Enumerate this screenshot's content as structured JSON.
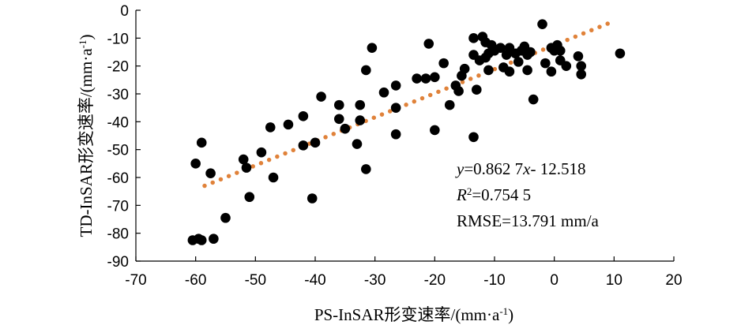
{
  "chart_data": {
    "type": "scatter",
    "xlabel": "PS-InSAR形变速率/(mm·a-1)",
    "xlabel_parts": {
      "main": "PS-InSAR形变速率/(mm·a",
      "sup": "-1",
      "tail": ")"
    },
    "ylabel": "TD-InSAR形变速率/(mm·a-1)",
    "ylabel_parts": {
      "main": "TD-InSAR形变速率/(mm·a",
      "sup": "-1",
      "tail": ")"
    },
    "xlim": [
      -70,
      20
    ],
    "ylim": [
      -90,
      0
    ],
    "xticks": [
      -70,
      -60,
      -50,
      -40,
      -30,
      -20,
      -10,
      0,
      10,
      20
    ],
    "yticks": [
      0,
      -10,
      -20,
      -30,
      -40,
      -50,
      -60,
      -70,
      -80,
      -90
    ],
    "grid": false,
    "point_color": "#000000",
    "trendline_color": "#e0823a",
    "trendline": {
      "slope": 0.8627,
      "intercept": -12.518,
      "x_range": [
        -58.5,
        9.5
      ]
    },
    "annotations": {
      "equation": {
        "y": "y",
        "mid": "=0.862 7",
        "x": "x",
        "tail": "- 12.518"
      },
      "r2": {
        "r": "R",
        "sup": "2",
        "tail": "=0.754 5"
      },
      "rmse": "RMSE=13.791 mm/a"
    },
    "points": [
      [
        -60.5,
        -82.5
      ],
      [
        -59.5,
        -82.0
      ],
      [
        -59.0,
        -82.5
      ],
      [
        -57.0,
        -82.0
      ],
      [
        -55.0,
        -74.5
      ],
      [
        -60.0,
        -55.0
      ],
      [
        -59.0,
        -47.5
      ],
      [
        -57.5,
        -58.5
      ],
      [
        -52.0,
        -53.5
      ],
      [
        -51.5,
        -56.5
      ],
      [
        -51.0,
        -67.0
      ],
      [
        -49.0,
        -51.0
      ],
      [
        -47.5,
        -42.0
      ],
      [
        -47.0,
        -60.0
      ],
      [
        -44.5,
        -41.0
      ],
      [
        -42.0,
        -38.0
      ],
      [
        -42.0,
        -48.5
      ],
      [
        -40.5,
        -67.5
      ],
      [
        -40.0,
        -47.5
      ],
      [
        -39.0,
        -31.0
      ],
      [
        -36.0,
        -34.0
      ],
      [
        -36.0,
        -39.0
      ],
      [
        -35.0,
        -42.5
      ],
      [
        -33.0,
        -48.0
      ],
      [
        -32.5,
        -34.0
      ],
      [
        -32.5,
        -39.5
      ],
      [
        -31.5,
        -21.5
      ],
      [
        -31.5,
        -57.0
      ],
      [
        -30.5,
        -13.5
      ],
      [
        -28.5,
        -29.5
      ],
      [
        -26.5,
        -27.0
      ],
      [
        -26.5,
        -35.0
      ],
      [
        -26.5,
        -44.5
      ],
      [
        -23.0,
        -24.5
      ],
      [
        -21.5,
        -24.5
      ],
      [
        -21.0,
        -12.0
      ],
      [
        -20.0,
        -24.0
      ],
      [
        -20.0,
        -43.0
      ],
      [
        -18.5,
        -19.0
      ],
      [
        -17.5,
        -34.0
      ],
      [
        -16.5,
        -27.0
      ],
      [
        -16.0,
        -29.0
      ],
      [
        -15.5,
        -23.5
      ],
      [
        -15.0,
        -21.0
      ],
      [
        -13.5,
        -45.5
      ],
      [
        -13.5,
        -10.0
      ],
      [
        -13.5,
        -16.0
      ],
      [
        -13.0,
        -28.5
      ],
      [
        -12.5,
        -18.0
      ],
      [
        -12.0,
        -9.5
      ],
      [
        -11.5,
        -11.5
      ],
      [
        -11.5,
        -17.0
      ],
      [
        -11.0,
        -21.5
      ],
      [
        -11.0,
        -15.5
      ],
      [
        -10.5,
        -12.5
      ],
      [
        -10.0,
        -14.5
      ],
      [
        -9.0,
        -13.5
      ],
      [
        -8.5,
        -20.5
      ],
      [
        -8.0,
        -16.0
      ],
      [
        -7.5,
        -13.5
      ],
      [
        -7.5,
        -22.0
      ],
      [
        -6.5,
        -15.5
      ],
      [
        -6.0,
        -18.5
      ],
      [
        -5.5,
        -14.5
      ],
      [
        -5.0,
        -13.0
      ],
      [
        -4.5,
        -16.0
      ],
      [
        -4.5,
        -21.5
      ],
      [
        -4.0,
        -15.0
      ],
      [
        -3.5,
        -32.0
      ],
      [
        -2.0,
        -5.0
      ],
      [
        -1.5,
        -19.0
      ],
      [
        -0.5,
        -13.5
      ],
      [
        -0.5,
        -22.0
      ],
      [
        0.0,
        -14.5
      ],
      [
        0.5,
        -12.5
      ],
      [
        1.0,
        -18.0
      ],
      [
        1.0,
        -14.5
      ],
      [
        2.0,
        -20.0
      ],
      [
        4.0,
        -16.5
      ],
      [
        4.5,
        -20.0
      ],
      [
        4.5,
        -23.0
      ],
      [
        11.0,
        -15.5
      ]
    ]
  }
}
